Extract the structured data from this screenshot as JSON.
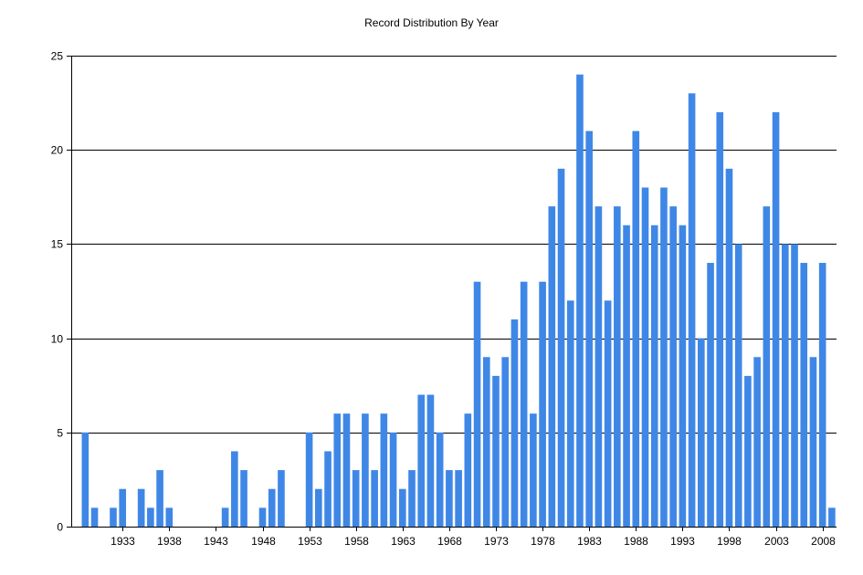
{
  "chart_data": {
    "type": "bar",
    "title": "Record Distribution By Year",
    "xlabel": "",
    "ylabel": "",
    "ylim": [
      0,
      25
    ],
    "yticks": [
      0,
      5,
      10,
      15,
      20,
      25
    ],
    "xlim": [
      1928,
      2009
    ],
    "xticks": [
      1933,
      1938,
      1943,
      1948,
      1953,
      1958,
      1963,
      1968,
      1973,
      1978,
      1983,
      1988,
      1993,
      1998,
      2003,
      2008
    ],
    "grid": true,
    "bar_color": "#3f87e6",
    "grid_color": "#000000",
    "x": [
      1929,
      1930,
      1932,
      1933,
      1935,
      1936,
      1937,
      1938,
      1944,
      1945,
      1946,
      1948,
      1949,
      1950,
      1953,
      1954,
      1955,
      1956,
      1957,
      1958,
      1959,
      1960,
      1961,
      1962,
      1963,
      1964,
      1965,
      1966,
      1967,
      1968,
      1969,
      1970,
      1971,
      1972,
      1973,
      1974,
      1975,
      1976,
      1977,
      1978,
      1979,
      1980,
      1981,
      1982,
      1983,
      1984,
      1985,
      1986,
      1987,
      1988,
      1989,
      1990,
      1991,
      1992,
      1993,
      1994,
      1995,
      1996,
      1997,
      1998,
      1999,
      2000,
      2001,
      2002,
      2003,
      2004,
      2005,
      2006,
      2007,
      2008,
      2009
    ],
    "values": [
      5,
      1,
      1,
      2,
      2,
      1,
      3,
      1,
      1,
      4,
      3,
      1,
      2,
      3,
      5,
      2,
      4,
      6,
      6,
      3,
      6,
      3,
      6,
      5,
      2,
      3,
      7,
      7,
      5,
      3,
      3,
      6,
      13,
      9,
      8,
      9,
      11,
      13,
      6,
      13,
      17,
      19,
      12,
      24,
      21,
      17,
      12,
      17,
      16,
      21,
      18,
      16,
      18,
      17,
      16,
      23,
      10,
      14,
      22,
      19,
      15,
      8,
      9,
      17,
      22,
      15,
      15,
      14,
      9,
      14,
      1
    ]
  }
}
